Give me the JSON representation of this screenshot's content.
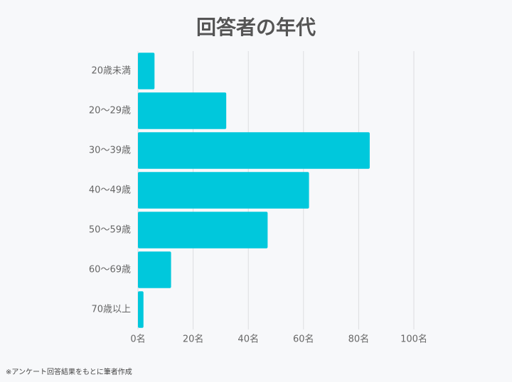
{
  "chart_data": {
    "type": "hbar",
    "title": "回答者の年代",
    "categories": [
      "20歳未満",
      "20〜29歳",
      "30〜39歳",
      "40〜49歳",
      "50〜59歳",
      "60〜69歳",
      "70歳以上"
    ],
    "values": [
      6,
      32,
      84,
      62,
      47,
      12,
      2
    ],
    "color": "#00c8dc",
    "xlim": [
      0,
      100
    ],
    "xticks": [
      {
        "value": 0,
        "label": "0名"
      },
      {
        "value": 20,
        "label": "20名"
      },
      {
        "value": 40,
        "label": "40名"
      },
      {
        "value": 60,
        "label": "60名"
      },
      {
        "value": 80,
        "label": "80名"
      },
      {
        "value": 100,
        "label": "100名"
      }
    ],
    "grid": true,
    "note": "※アンケート回答結果をもとに筆者作成"
  }
}
